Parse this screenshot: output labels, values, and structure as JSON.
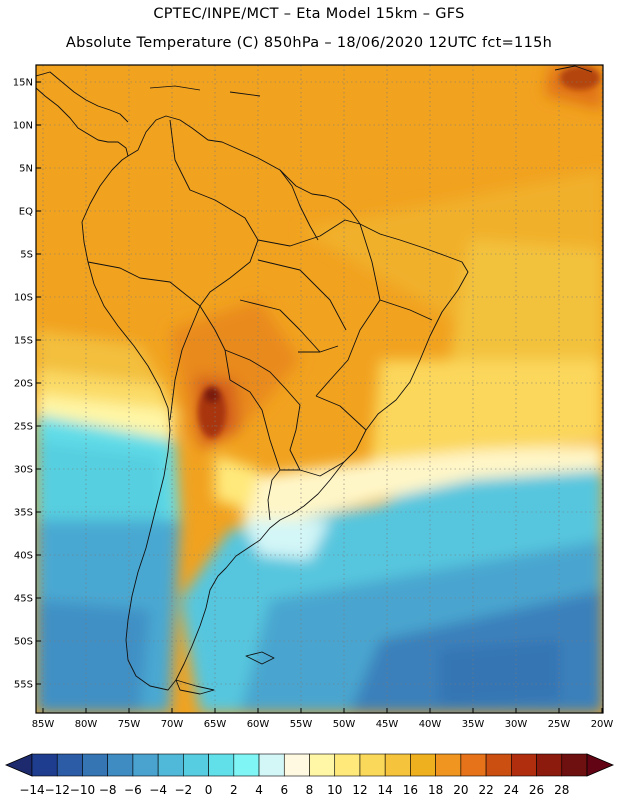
{
  "title_line1": "CPTEC/INPE/MCT –  Eta Model 15km – GFS",
  "title_line2": "Absolute Temperature (C) 850hPa – 18/06/2020 12UTC fct=115h",
  "lat_labels": [
    "15N",
    "10N",
    "5N",
    "EQ",
    "5S",
    "10S",
    "15S",
    "20S",
    "25S",
    "30S",
    "35S",
    "40S",
    "45S",
    "50S",
    "55S"
  ],
  "lon_labels": [
    "85W",
    "80W",
    "75W",
    "70W",
    "65W",
    "60W",
    "55W",
    "50W",
    "45W",
    "40W",
    "35W",
    "30W",
    "25W",
    "20W"
  ],
  "colorbar": {
    "labels": [
      "-14",
      "-12",
      "-10",
      "-8",
      "-6",
      "-4",
      "-2",
      "0",
      "2",
      "4",
      "6",
      "8",
      "10",
      "12",
      "14",
      "16",
      "18",
      "20",
      "22",
      "24",
      "26",
      "28"
    ],
    "colors": [
      "#1f3d8f",
      "#2c5ca6",
      "#3575b3",
      "#3f8cc2",
      "#4aa3cf",
      "#50b8d8",
      "#56cde0",
      "#62e0ea",
      "#7ff5f5",
      "#d3f6f7",
      "#fff9e2",
      "#fff6a6",
      "#ffe97b",
      "#fad85a",
      "#f5c43c",
      "#efb020",
      "#f09620",
      "#e6731a",
      "#cc4f12",
      "#b02d0e",
      "#8c1a0d",
      "#6e0f10"
    ],
    "low_arrow_color": "#1d2a6e",
    "high_arrow_color": "#630414"
  }
}
